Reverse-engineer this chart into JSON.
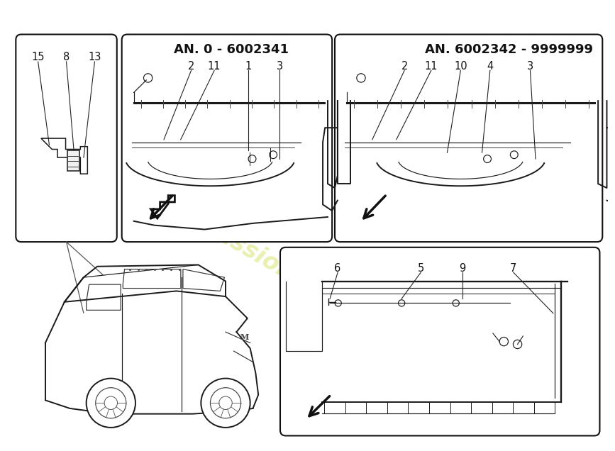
{
  "bg": "#ffffff",
  "wm_text": "a passion for parts since 1985",
  "wm_color": "#c8d830",
  "wm_alpha": 0.38,
  "border_color": "#111111",
  "draw_color": "#1a1a1a",
  "lw_main": 1.4,
  "lw_thin": 0.85,
  "title_fs": 13,
  "num_fs": 10.5,
  "panel_small": [
    16,
    50,
    185,
    380
  ],
  "panel_topleft": [
    210,
    50,
    385,
    380
  ],
  "panel_topright": [
    600,
    50,
    490,
    380
  ],
  "panel_botright": [
    500,
    440,
    585,
    345
  ],
  "label_topleft": "AN. 0 - 6002341",
  "label_topright": "AN. 6002342 - 9999999",
  "nums_small": [
    "15",
    "8",
    "13"
  ],
  "nums_topleft": [
    "2",
    "11",
    "1",
    "3"
  ],
  "nums_topright": [
    "2",
    "11",
    "10",
    "4",
    "3"
  ],
  "nums_botright": [
    "6",
    "5",
    "9",
    "7"
  ]
}
